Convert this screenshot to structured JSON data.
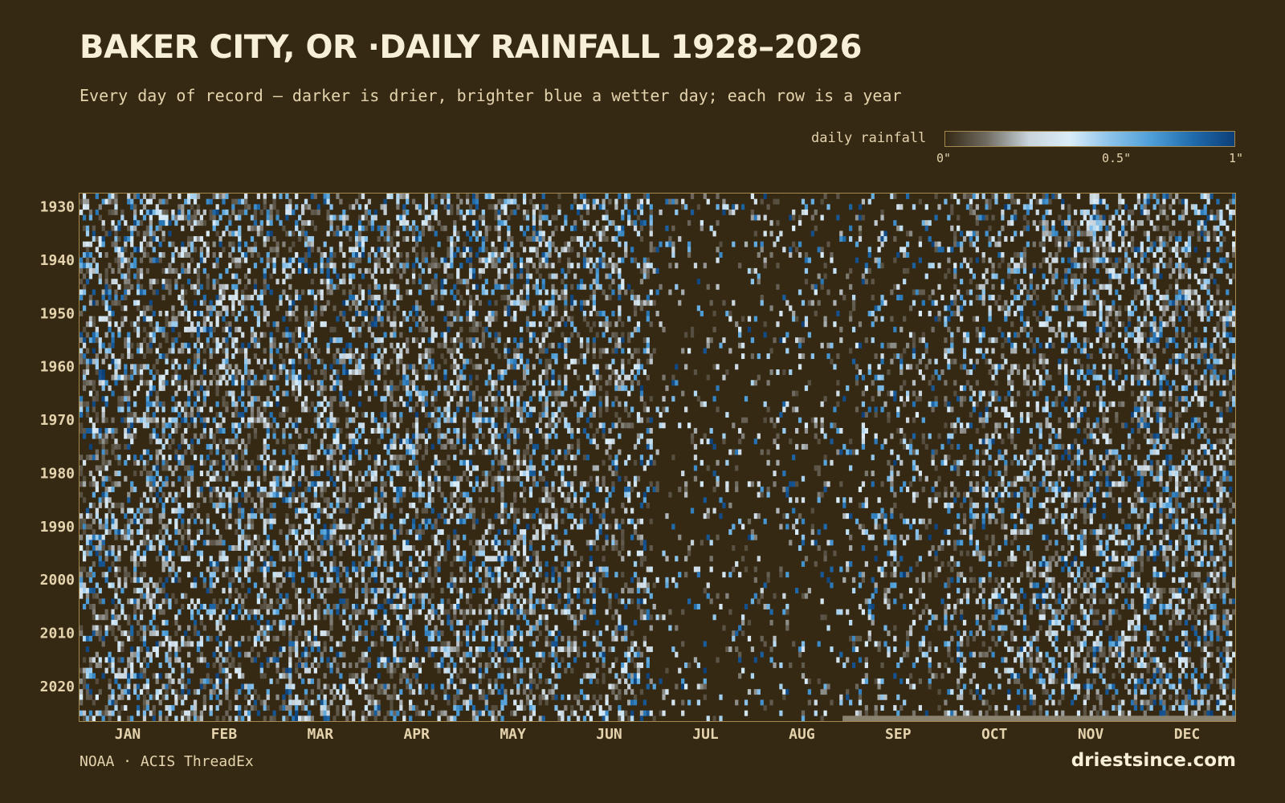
{
  "title": "BAKER CITY, OR ·DAILY RAINFALL 1928–2026",
  "subtitle": "Every day of record — darker is drier, brighter blue a wetter day; each row is a year",
  "legend": {
    "label": "daily rainfall",
    "ticks": [
      {
        "label": "0\"",
        "value": 0
      },
      {
        "label": "0.5\"",
        "value": 0.5
      },
      {
        "label": "1\"",
        "value": 1
      }
    ],
    "colors": [
      "#352914",
      "#6f6a60",
      "#c9d4dc",
      "#d9ecf8",
      "#8cc3ea",
      "#4f9fd8",
      "#1f6aab",
      "#0d3f78"
    ]
  },
  "colors": {
    "background": "#352914",
    "frame": "#a48a4e",
    "text": "#e4d3ad",
    "title": "#f8efd8"
  },
  "chart_data": {
    "type": "heatmap",
    "title": "BAKER CITY, OR ·DAILY RAINFALL 1928–2026",
    "x_categories": [
      "JAN",
      "FEB",
      "MAR",
      "APR",
      "MAY",
      "JUN",
      "JUL",
      "AUG",
      "SEP",
      "OCT",
      "NOV",
      "DEC"
    ],
    "y_range": [
      1928,
      2026
    ],
    "y_tick_labels": [
      "1930",
      "1940",
      "1950",
      "1960",
      "1970",
      "1980",
      "1990",
      "2000",
      "2010",
      "2020"
    ],
    "value_range": [
      0,
      1
    ],
    "value_unit": "inches",
    "days_per_year": 365,
    "last_recorded_day_2026": 241,
    "wet_day_fraction_by_month": [
      0.42,
      0.4,
      0.4,
      0.4,
      0.38,
      0.32,
      0.1,
      0.12,
      0.18,
      0.3,
      0.4,
      0.42
    ],
    "grid": false
  },
  "footer": {
    "source": "NOAA · ACIS ThreadEx",
    "brand": "driestsince.com"
  }
}
